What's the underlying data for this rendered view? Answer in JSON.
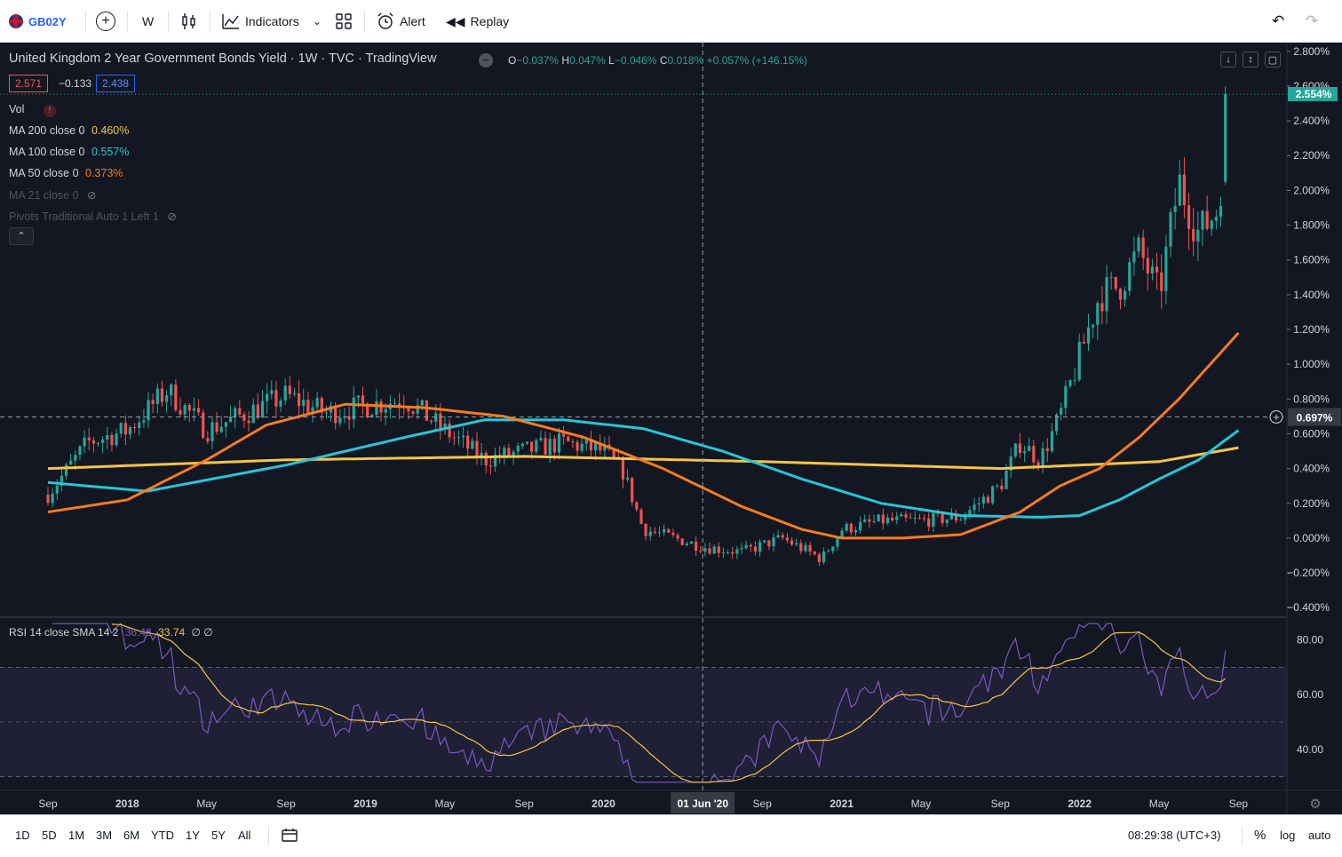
{
  "toolbar": {
    "symbol": "GB02Y",
    "interval": "W",
    "indicators_label": "Indicators",
    "alert_label": "Alert",
    "replay_label": "Replay"
  },
  "legend": {
    "title": "United Kingdom 2 Year Government Bonds Yield · 1W · TVC · TradingView",
    "ohlc": {
      "o_label": "O",
      "o": "−0.037%",
      "h_label": "H",
      "h": "0.047%",
      "l_label": "L",
      "l": "−0.046%",
      "c_label": "C",
      "c": "0.018%",
      "change": "+0.057% (+146.15%)"
    },
    "price_boxes": {
      "ask": "2.571",
      "spread": "−0.133",
      "bid": "2.438"
    },
    "indicators": [
      {
        "name": "Vol",
        "value": ""
      },
      {
        "name": "MA 200 close 0",
        "value": "0.460%",
        "color": "#f5c543"
      },
      {
        "name": "MA 100 close 0",
        "value": "0.557%",
        "color": "#29c5d6"
      },
      {
        "name": "MA 50 close 0",
        "value": "0.373%",
        "color": "#f57b20"
      },
      {
        "name": "MA 21 close 0",
        "value": ""
      },
      {
        "name": "Pivots Traditional Auto 1 Left 1",
        "value": ""
      }
    ],
    "rsi": {
      "label": "RSI 14 close SMA 14 2",
      "rsi_value": "36.48",
      "sma_value": "33.74",
      "extra": "∅ ∅"
    }
  },
  "chart_data": {
    "type": "candlestick",
    "price_axis": {
      "ticks": [
        "2.800%",
        "2.600%",
        "2.400%",
        "2.200%",
        "2.000%",
        "1.800%",
        "1.600%",
        "1.400%",
        "1.200%",
        "1.000%",
        "0.800%",
        "0.600%",
        "0.400%",
        "0.200%",
        "0.000%",
        "−0.200%",
        "−0.400%"
      ],
      "tick_values": [
        2.8,
        2.6,
        2.4,
        2.2,
        2.0,
        1.8,
        1.6,
        1.4,
        1.2,
        1.0,
        0.8,
        0.6,
        0.4,
        0.2,
        0.0,
        -0.2,
        -0.4
      ],
      "last_price": "2.554%",
      "last_value": 2.554,
      "crosshair_price": "0.697%",
      "crosshair_value": 0.697,
      "ylim": [
        -0.45,
        2.85
      ]
    },
    "rsi_axis": {
      "ticks": [
        "80.00",
        "60.00",
        "40.00"
      ],
      "tick_values": [
        80,
        60,
        40
      ],
      "band": [
        30,
        70
      ],
      "mid": 50,
      "ylim": [
        25,
        88
      ]
    },
    "time_axis": {
      "labels": [
        "Sep",
        "2018",
        "May",
        "Sep",
        "2019",
        "May",
        "Sep",
        "2020",
        "Sep",
        "2021",
        "May",
        "Sep",
        "2022",
        "May",
        "Sep"
      ],
      "label_months": [
        0,
        4,
        8,
        12,
        16,
        20,
        24,
        28,
        36,
        40,
        44,
        48,
        52,
        56,
        60
      ],
      "crosshair_label": "01 Jun '20",
      "crosshair_month": 33,
      "start": "Aug 2017",
      "end": "Sep 2022"
    },
    "price_series": {
      "months": [
        0,
        2,
        4,
        6,
        8,
        10,
        12,
        14,
        16,
        18,
        20,
        22,
        24,
        26,
        28,
        29,
        30,
        31,
        33,
        35,
        37,
        39,
        40,
        42,
        44,
        46,
        48,
        49,
        50,
        51,
        52,
        53,
        54,
        55,
        56,
        57,
        58,
        59,
        59.5
      ],
      "close": [
        0.25,
        0.55,
        0.62,
        0.85,
        0.62,
        0.72,
        0.82,
        0.72,
        0.76,
        0.8,
        0.62,
        0.45,
        0.5,
        0.55,
        0.5,
        0.38,
        0.05,
        0.02,
        -0.05,
        -0.08,
        0.0,
        -0.12,
        0.05,
        0.1,
        0.1,
        0.12,
        0.3,
        0.55,
        0.45,
        0.7,
        1.05,
        1.4,
        1.45,
        1.65,
        1.4,
        2.05,
        1.75,
        1.9,
        2.554
      ]
    },
    "series": [
      {
        "name": "MA 200 close 0",
        "color": "#f5c543",
        "months": [
          0,
          12,
          24,
          36,
          48,
          56,
          60
        ],
        "values": [
          0.4,
          0.45,
          0.47,
          0.44,
          0.4,
          0.44,
          0.52
        ]
      },
      {
        "name": "MA 100 close 0",
        "color": "#29c5d6",
        "months": [
          0,
          5,
          12,
          18,
          22,
          26,
          30,
          34,
          38,
          42,
          46,
          50,
          52,
          54,
          56,
          58,
          60
        ],
        "values": [
          0.32,
          0.27,
          0.42,
          0.58,
          0.68,
          0.68,
          0.63,
          0.5,
          0.34,
          0.2,
          0.13,
          0.12,
          0.13,
          0.22,
          0.34,
          0.45,
          0.62
        ]
      },
      {
        "name": "MA 50 close 0",
        "color": "#f57b20",
        "months": [
          0,
          4,
          8,
          11,
          15,
          19,
          23,
          27,
          31,
          35,
          38,
          40,
          43,
          46,
          49,
          51,
          53,
          55,
          57,
          60
        ],
        "values": [
          0.15,
          0.22,
          0.45,
          0.65,
          0.77,
          0.75,
          0.7,
          0.58,
          0.4,
          0.18,
          0.05,
          0.0,
          0.0,
          0.02,
          0.15,
          0.3,
          0.4,
          0.58,
          0.8,
          1.18
        ]
      }
    ]
  },
  "bottombar": {
    "ranges": [
      "1D",
      "5D",
      "1M",
      "3M",
      "6M",
      "YTD",
      "1Y",
      "5Y",
      "All"
    ],
    "time": "08:29:38 (UTC+3)",
    "percent": "%",
    "log": "log",
    "auto": "auto"
  },
  "colors": {
    "background": "#131722",
    "up": "#26a69a",
    "down": "#ef5350",
    "rsi": "#7e57c2",
    "rsi_sma": "#f5c543"
  }
}
